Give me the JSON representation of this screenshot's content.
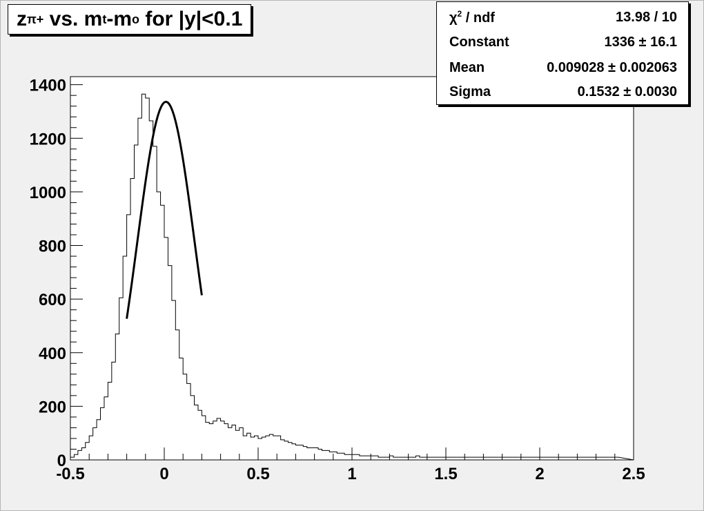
{
  "title": {
    "main": "z",
    "sub": "π+",
    "mid": " vs. m",
    "sub2": "t",
    "mid2": "-m",
    "sub3": "o",
    "tail": " for |y|<0.1"
  },
  "stats": {
    "rows": [
      {
        "label_pre": "χ",
        "label_sup": "2",
        "label_post": " / ndf",
        "value": "13.98 / 10"
      },
      {
        "label": "Constant",
        "value": "1336 ± 16.1"
      },
      {
        "label": "Mean",
        "value": "0.009028 ± 0.002063"
      },
      {
        "label": "Sigma",
        "value": "0.1532 ± 0.0030"
      }
    ]
  },
  "chart_data": {
    "type": "histogram",
    "xlim": [
      -0.5,
      2.5
    ],
    "ylim": [
      0,
      1430
    ],
    "x_ticks": [
      "-0.5",
      "0",
      "0.5",
      "1",
      "1.5",
      "2",
      "2.5"
    ],
    "x_tick_values": [
      -0.5,
      0,
      0.5,
      1,
      1.5,
      2,
      2.5
    ],
    "y_ticks": [
      "0",
      "200",
      "400",
      "600",
      "800",
      "1000",
      "1200",
      "1400"
    ],
    "y_tick_values": [
      0,
      200,
      400,
      600,
      800,
      1000,
      1200,
      1400
    ],
    "bin_width": 0.02,
    "counts": [
      10,
      20,
      35,
      45,
      65,
      90,
      120,
      150,
      195,
      235,
      290,
      365,
      470,
      605,
      760,
      915,
      1050,
      1175,
      1275,
      1365,
      1350,
      1265,
      1170,
      1000,
      950,
      830,
      725,
      595,
      485,
      380,
      320,
      285,
      240,
      205,
      185,
      165,
      140,
      135,
      145,
      155,
      145,
      135,
      120,
      130,
      110,
      120,
      90,
      100,
      85,
      90,
      80,
      85,
      90,
      95,
      90,
      90,
      75,
      70,
      65,
      60,
      55,
      55,
      50,
      45,
      45,
      45,
      40,
      35,
      35,
      30,
      30,
      25,
      25,
      20,
      20,
      20,
      20,
      15,
      15,
      15,
      15,
      15,
      10,
      10,
      10,
      15,
      10,
      10,
      10,
      10,
      10,
      10,
      15,
      10,
      10,
      10,
      10,
      10,
      10,
      10,
      10,
      10,
      10,
      10,
      10,
      10,
      10,
      10,
      10,
      10,
      10,
      10,
      10,
      10,
      10,
      10,
      10,
      10,
      10,
      10,
      10,
      10,
      10,
      10,
      10,
      10,
      10,
      10,
      10,
      10,
      10,
      10,
      10,
      10,
      10,
      10,
      10,
      10,
      10,
      10,
      10,
      10,
      10,
      10,
      10,
      10
    ],
    "fit": {
      "function": "gaus",
      "constant": 1336,
      "mean": 0.009028,
      "sigma": 0.1532,
      "range": [
        -0.2,
        0.2
      ]
    },
    "colors": {
      "frame": "#f0f0f0",
      "plot_bg": "#ffffff",
      "line": "#000000"
    }
  }
}
